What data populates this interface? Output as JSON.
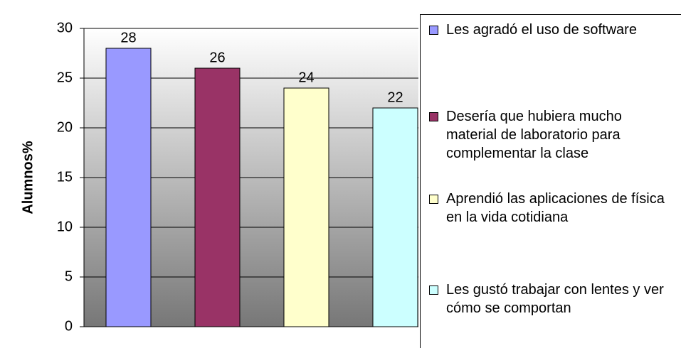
{
  "chart_data": {
    "type": "bar",
    "ylabel": "Alumnos%",
    "series": [
      {
        "name": "Les agradó el uso de software",
        "color": "#9999ff",
        "values": [
          28
        ]
      },
      {
        "name": "Desería que hubiera mucho material de laboratorio para complementar la clase",
        "color": "#993366",
        "values": [
          26
        ]
      },
      {
        "name": "Aprendió las aplicaciones de física en la vida cotidiana",
        "color": "#ffffcc",
        "values": [
          24
        ]
      },
      {
        "name": "Les gustó trabajar con lentes y ver cómo se comportan",
        "color": "#ccffff",
        "values": [
          22
        ]
      }
    ],
    "ylim": [
      0,
      30
    ],
    "yticks": [
      0,
      5,
      10,
      15,
      20,
      25,
      30
    ],
    "grid": true,
    "legend": "right"
  }
}
